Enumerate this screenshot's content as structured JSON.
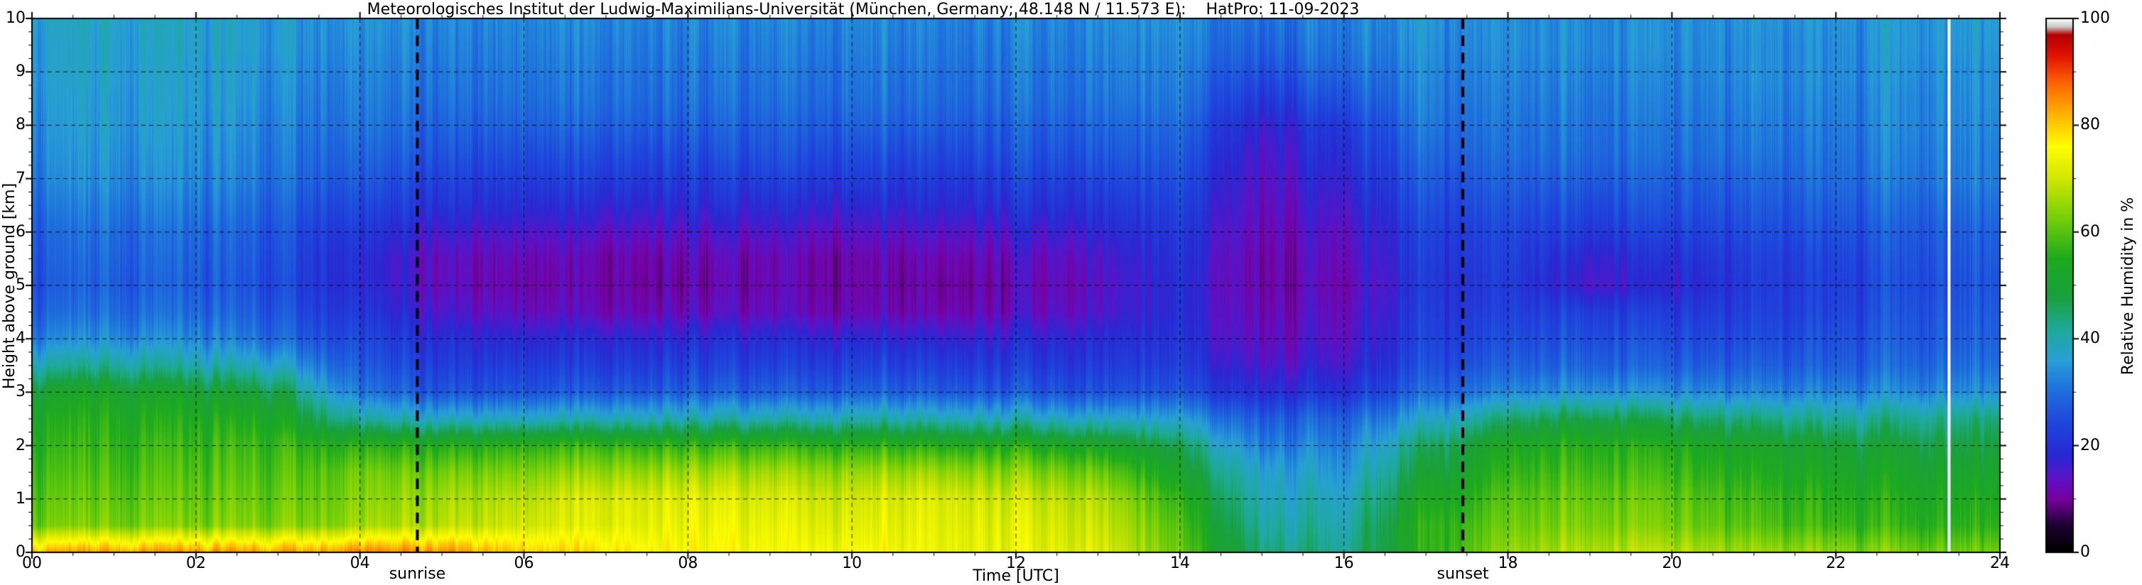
{
  "chart_data": {
    "type": "heatmap",
    "title": "Meteorologisches Institut der Ludwig-Maximilians-Universität (München, Germany; 48.148 N / 11.573 E):    HatPro: 11-09-2023",
    "xlabel": "Time [UTC]",
    "ylabel": "Height above ground [km]",
    "colorbar_label": "Relative Humidity in %",
    "x_range": [
      0,
      24
    ],
    "y_range": [
      0,
      10
    ],
    "value_range": [
      0,
      100
    ],
    "grid": {
      "show": true,
      "style": "dashed"
    },
    "x_ticks": [
      0,
      2,
      4,
      6,
      8,
      10,
      12,
      14,
      16,
      18,
      20,
      22,
      24
    ],
    "x_tick_labels": [
      "00",
      "02",
      "04",
      "06",
      "08",
      "10",
      "12",
      "14",
      "16",
      "18",
      "20",
      "22",
      "24"
    ],
    "x_minor_step": 0.5,
    "y_ticks": [
      0,
      1,
      2,
      3,
      4,
      5,
      6,
      7,
      8,
      9,
      10
    ],
    "y_tick_labels": [
      "0",
      "1",
      "2",
      "3",
      "4",
      "5",
      "6",
      "7",
      "8",
      "9",
      "10"
    ],
    "y_minor_step": 0.25,
    "colorbar_ticks": [
      0,
      20,
      40,
      60,
      80,
      100
    ],
    "annotations": [
      {
        "label": "sunrise",
        "x": 4.7,
        "line": "black-dashed"
      },
      {
        "label": "sunset",
        "x": 17.45,
        "line": "black-dashed"
      }
    ],
    "data_gap_x": 23.38,
    "colormap_stops": [
      [
        0,
        "#000000"
      ],
      [
        5,
        "#1e0032"
      ],
      [
        10,
        "#7800a0"
      ],
      [
        14,
        "#5a14c8"
      ],
      [
        18,
        "#2828d2"
      ],
      [
        24,
        "#1e46dc"
      ],
      [
        30,
        "#1e6edc"
      ],
      [
        36,
        "#28a0d7"
      ],
      [
        42,
        "#1eaa96"
      ],
      [
        48,
        "#19a03c"
      ],
      [
        55,
        "#1eaa1e"
      ],
      [
        62,
        "#6ecd0a"
      ],
      [
        70,
        "#d2e600"
      ],
      [
        76,
        "#ffff00"
      ],
      [
        82,
        "#ffb400"
      ],
      [
        88,
        "#ff6400"
      ],
      [
        93,
        "#e11400"
      ],
      [
        97,
        "#b40000"
      ],
      [
        98.5,
        "#c8c8c8"
      ],
      [
        100,
        "#ffffff"
      ]
    ],
    "x_hours": [
      0,
      1,
      2,
      3,
      4,
      5,
      6,
      7,
      8,
      9,
      10,
      11,
      12,
      13,
      14,
      15,
      16,
      17,
      18,
      19,
      20,
      21,
      22,
      23,
      24
    ],
    "heights_km": [
      0,
      0.5,
      1,
      1.5,
      2,
      2.5,
      3,
      3.5,
      4,
      4.5,
      5,
      5.5,
      6,
      6.5,
      7,
      7.5,
      8,
      8.5,
      9,
      9.5,
      10
    ],
    "humidity_grid_note": "rows ordered by heights_km ascending (surface first); columns = x_hours; values = relative humidity in %",
    "humidity_grid": [
      [
        82,
        84,
        84,
        84,
        85,
        85,
        80,
        78,
        76,
        75,
        75,
        74,
        73,
        72,
        60,
        45,
        42,
        55,
        65,
        68,
        68,
        66,
        65,
        62,
        62
      ],
      [
        62,
        63,
        63,
        64,
        65,
        68,
        70,
        72,
        74,
        73,
        72,
        73,
        72,
        70,
        58,
        42,
        40,
        55,
        62,
        64,
        63,
        60,
        58,
        56,
        56
      ],
      [
        60,
        61,
        61,
        62,
        63,
        66,
        68,
        71,
        72,
        71,
        70,
        72,
        70,
        68,
        55,
        40,
        38,
        52,
        60,
        62,
        61,
        58,
        56,
        54,
        54
      ],
      [
        58,
        59,
        59,
        60,
        61,
        62,
        63,
        65,
        66,
        66,
        65,
        66,
        64,
        62,
        50,
        38,
        35,
        48,
        57,
        59,
        58,
        55,
        53,
        51,
        51
      ],
      [
        56,
        57,
        57,
        58,
        55,
        55,
        56,
        57,
        57,
        57,
        56,
        56,
        55,
        53,
        45,
        33,
        32,
        44,
        54,
        56,
        55,
        52,
        50,
        48,
        48
      ],
      [
        54,
        55,
        54,
        54,
        40,
        38,
        38,
        39,
        40,
        40,
        40,
        40,
        39,
        38,
        35,
        28,
        28,
        36,
        45,
        48,
        46,
        44,
        42,
        42,
        44
      ],
      [
        50,
        52,
        50,
        48,
        30,
        26,
        26,
        27,
        28,
        28,
        28,
        28,
        27,
        26,
        25,
        20,
        20,
        28,
        33,
        35,
        34,
        33,
        33,
        33,
        34
      ],
      [
        40,
        42,
        40,
        38,
        26,
        22,
        22,
        22,
        23,
        23,
        23,
        23,
        22,
        22,
        21,
        16,
        16,
        24,
        28,
        29,
        28,
        28,
        28,
        29,
        30
      ],
      [
        32,
        34,
        33,
        30,
        23,
        19,
        18,
        18,
        19,
        19,
        18,
        18,
        18,
        19,
        19,
        14,
        14,
        22,
        25,
        26,
        25,
        25,
        26,
        27,
        28
      ],
      [
        28,
        30,
        29,
        27,
        20,
        15,
        13,
        12,
        13,
        13,
        12,
        12,
        13,
        15,
        18,
        13,
        13,
        21,
        23,
        23,
        22,
        23,
        24,
        26,
        27
      ],
      [
        26,
        28,
        27,
        25,
        18,
        13,
        11,
        11,
        11,
        12,
        11,
        11,
        12,
        14,
        18,
        12,
        12,
        20,
        22,
        16,
        18,
        22,
        23,
        25,
        26
      ],
      [
        27,
        29,
        28,
        26,
        18,
        13,
        12,
        11,
        12,
        12,
        11,
        12,
        13,
        15,
        19,
        12,
        13,
        21,
        23,
        18,
        20,
        23,
        24,
        26,
        27
      ],
      [
        28,
        30,
        29,
        27,
        20,
        16,
        15,
        14,
        15,
        15,
        14,
        15,
        16,
        18,
        20,
        13,
        14,
        22,
        24,
        22,
        23,
        25,
        26,
        27,
        28
      ],
      [
        30,
        32,
        31,
        29,
        23,
        20,
        19,
        18,
        19,
        19,
        18,
        19,
        20,
        21,
        22,
        14,
        16,
        24,
        26,
        25,
        26,
        27,
        28,
        29,
        30
      ],
      [
        32,
        34,
        33,
        31,
        26,
        23,
        22,
        22,
        22,
        23,
        22,
        22,
        23,
        24,
        24,
        15,
        18,
        26,
        28,
        28,
        28,
        29,
        30,
        31,
        32
      ],
      [
        33,
        35,
        34,
        32,
        28,
        26,
        25,
        25,
        25,
        26,
        25,
        25,
        26,
        27,
        26,
        16,
        20,
        28,
        30,
        30,
        30,
        31,
        31,
        32,
        32
      ],
      [
        34,
        36,
        35,
        33,
        30,
        28,
        28,
        28,
        28,
        28,
        28,
        28,
        28,
        29,
        28,
        18,
        22,
        30,
        31,
        31,
        31,
        32,
        32,
        33,
        33
      ],
      [
        35,
        36,
        36,
        34,
        31,
        30,
        30,
        30,
        30,
        30,
        30,
        30,
        30,
        31,
        30,
        22,
        26,
        31,
        32,
        32,
        32,
        33,
        33,
        33,
        34
      ],
      [
        36,
        37,
        36,
        35,
        32,
        31,
        31,
        31,
        31,
        31,
        31,
        31,
        31,
        32,
        31,
        26,
        29,
        32,
        33,
        33,
        33,
        34,
        34,
        34,
        34
      ],
      [
        36,
        37,
        37,
        36,
        33,
        32,
        32,
        32,
        32,
        32,
        32,
        32,
        32,
        33,
        32,
        29,
        31,
        33,
        34,
        34,
        34,
        34,
        34,
        35,
        35
      ],
      [
        37,
        38,
        37,
        36,
        34,
        33,
        33,
        33,
        33,
        33,
        33,
        33,
        33,
        34,
        33,
        31,
        32,
        34,
        34,
        34,
        34,
        35,
        35,
        35,
        36
      ]
    ]
  }
}
